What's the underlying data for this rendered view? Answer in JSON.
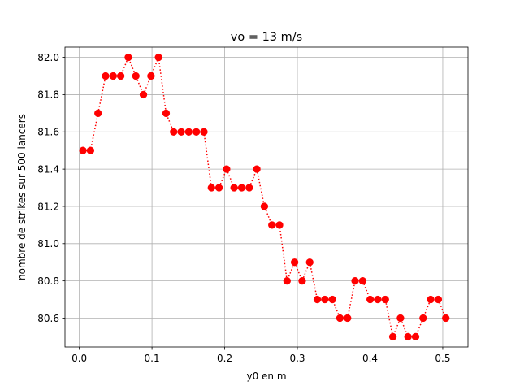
{
  "chart_data": {
    "type": "line",
    "title": "vo = 13 m/s",
    "xlabel": "y0 en m",
    "ylabel": "nombre de strikes sur 500 lancers",
    "xlim": [
      -0.0197,
      0.5347
    ],
    "ylim": [
      80.445,
      82.055
    ],
    "grid": true,
    "xticks": [
      0.0,
      0.1,
      0.2,
      0.3,
      0.4,
      0.5
    ],
    "xtick_labels": [
      "0.0",
      "0.1",
      "0.2",
      "0.3",
      "0.4",
      "0.5"
    ],
    "yticks": [
      80.6,
      80.8,
      81.0,
      81.2,
      81.4,
      81.6,
      81.8,
      82.0
    ],
    "ytick_labels": [
      "80.6",
      "80.8",
      "81.0",
      "81.2",
      "81.4",
      "81.6",
      "81.8",
      "82.0"
    ],
    "series": [
      {
        "color": "#ff0000",
        "line_style": "dotted",
        "marker": "circle",
        "x": [
          0.005,
          0.0154,
          0.0258,
          0.0362,
          0.0466,
          0.057,
          0.0674,
          0.0778,
          0.0882,
          0.0986,
          0.109,
          0.1194,
          0.1298,
          0.1402,
          0.1506,
          0.161,
          0.1714,
          0.1818,
          0.1922,
          0.2026,
          0.213,
          0.2234,
          0.2338,
          0.2442,
          0.2546,
          0.265,
          0.2754,
          0.2858,
          0.2962,
          0.3066,
          0.317,
          0.3274,
          0.3378,
          0.3482,
          0.3586,
          0.369,
          0.3794,
          0.3898,
          0.4002,
          0.4106,
          0.421,
          0.4314,
          0.4418,
          0.4522,
          0.4626,
          0.473,
          0.4834,
          0.4938,
          0.5042
        ],
        "y": [
          81.5,
          81.5,
          81.7,
          81.9,
          81.9,
          81.9,
          82.0,
          81.9,
          81.8,
          81.9,
          82.0,
          81.7,
          81.6,
          81.6,
          81.6,
          81.6,
          81.6,
          81.3,
          81.3,
          81.4,
          81.3,
          81.3,
          81.3,
          81.4,
          81.2,
          81.1,
          81.1,
          80.8,
          80.9,
          80.8,
          80.9,
          80.7,
          80.7,
          80.7,
          80.6,
          80.6,
          80.8,
          80.8,
          80.7,
          80.7,
          80.7,
          80.5,
          80.6,
          80.5,
          80.5,
          80.6,
          80.7,
          80.7,
          80.6
        ]
      }
    ]
  }
}
